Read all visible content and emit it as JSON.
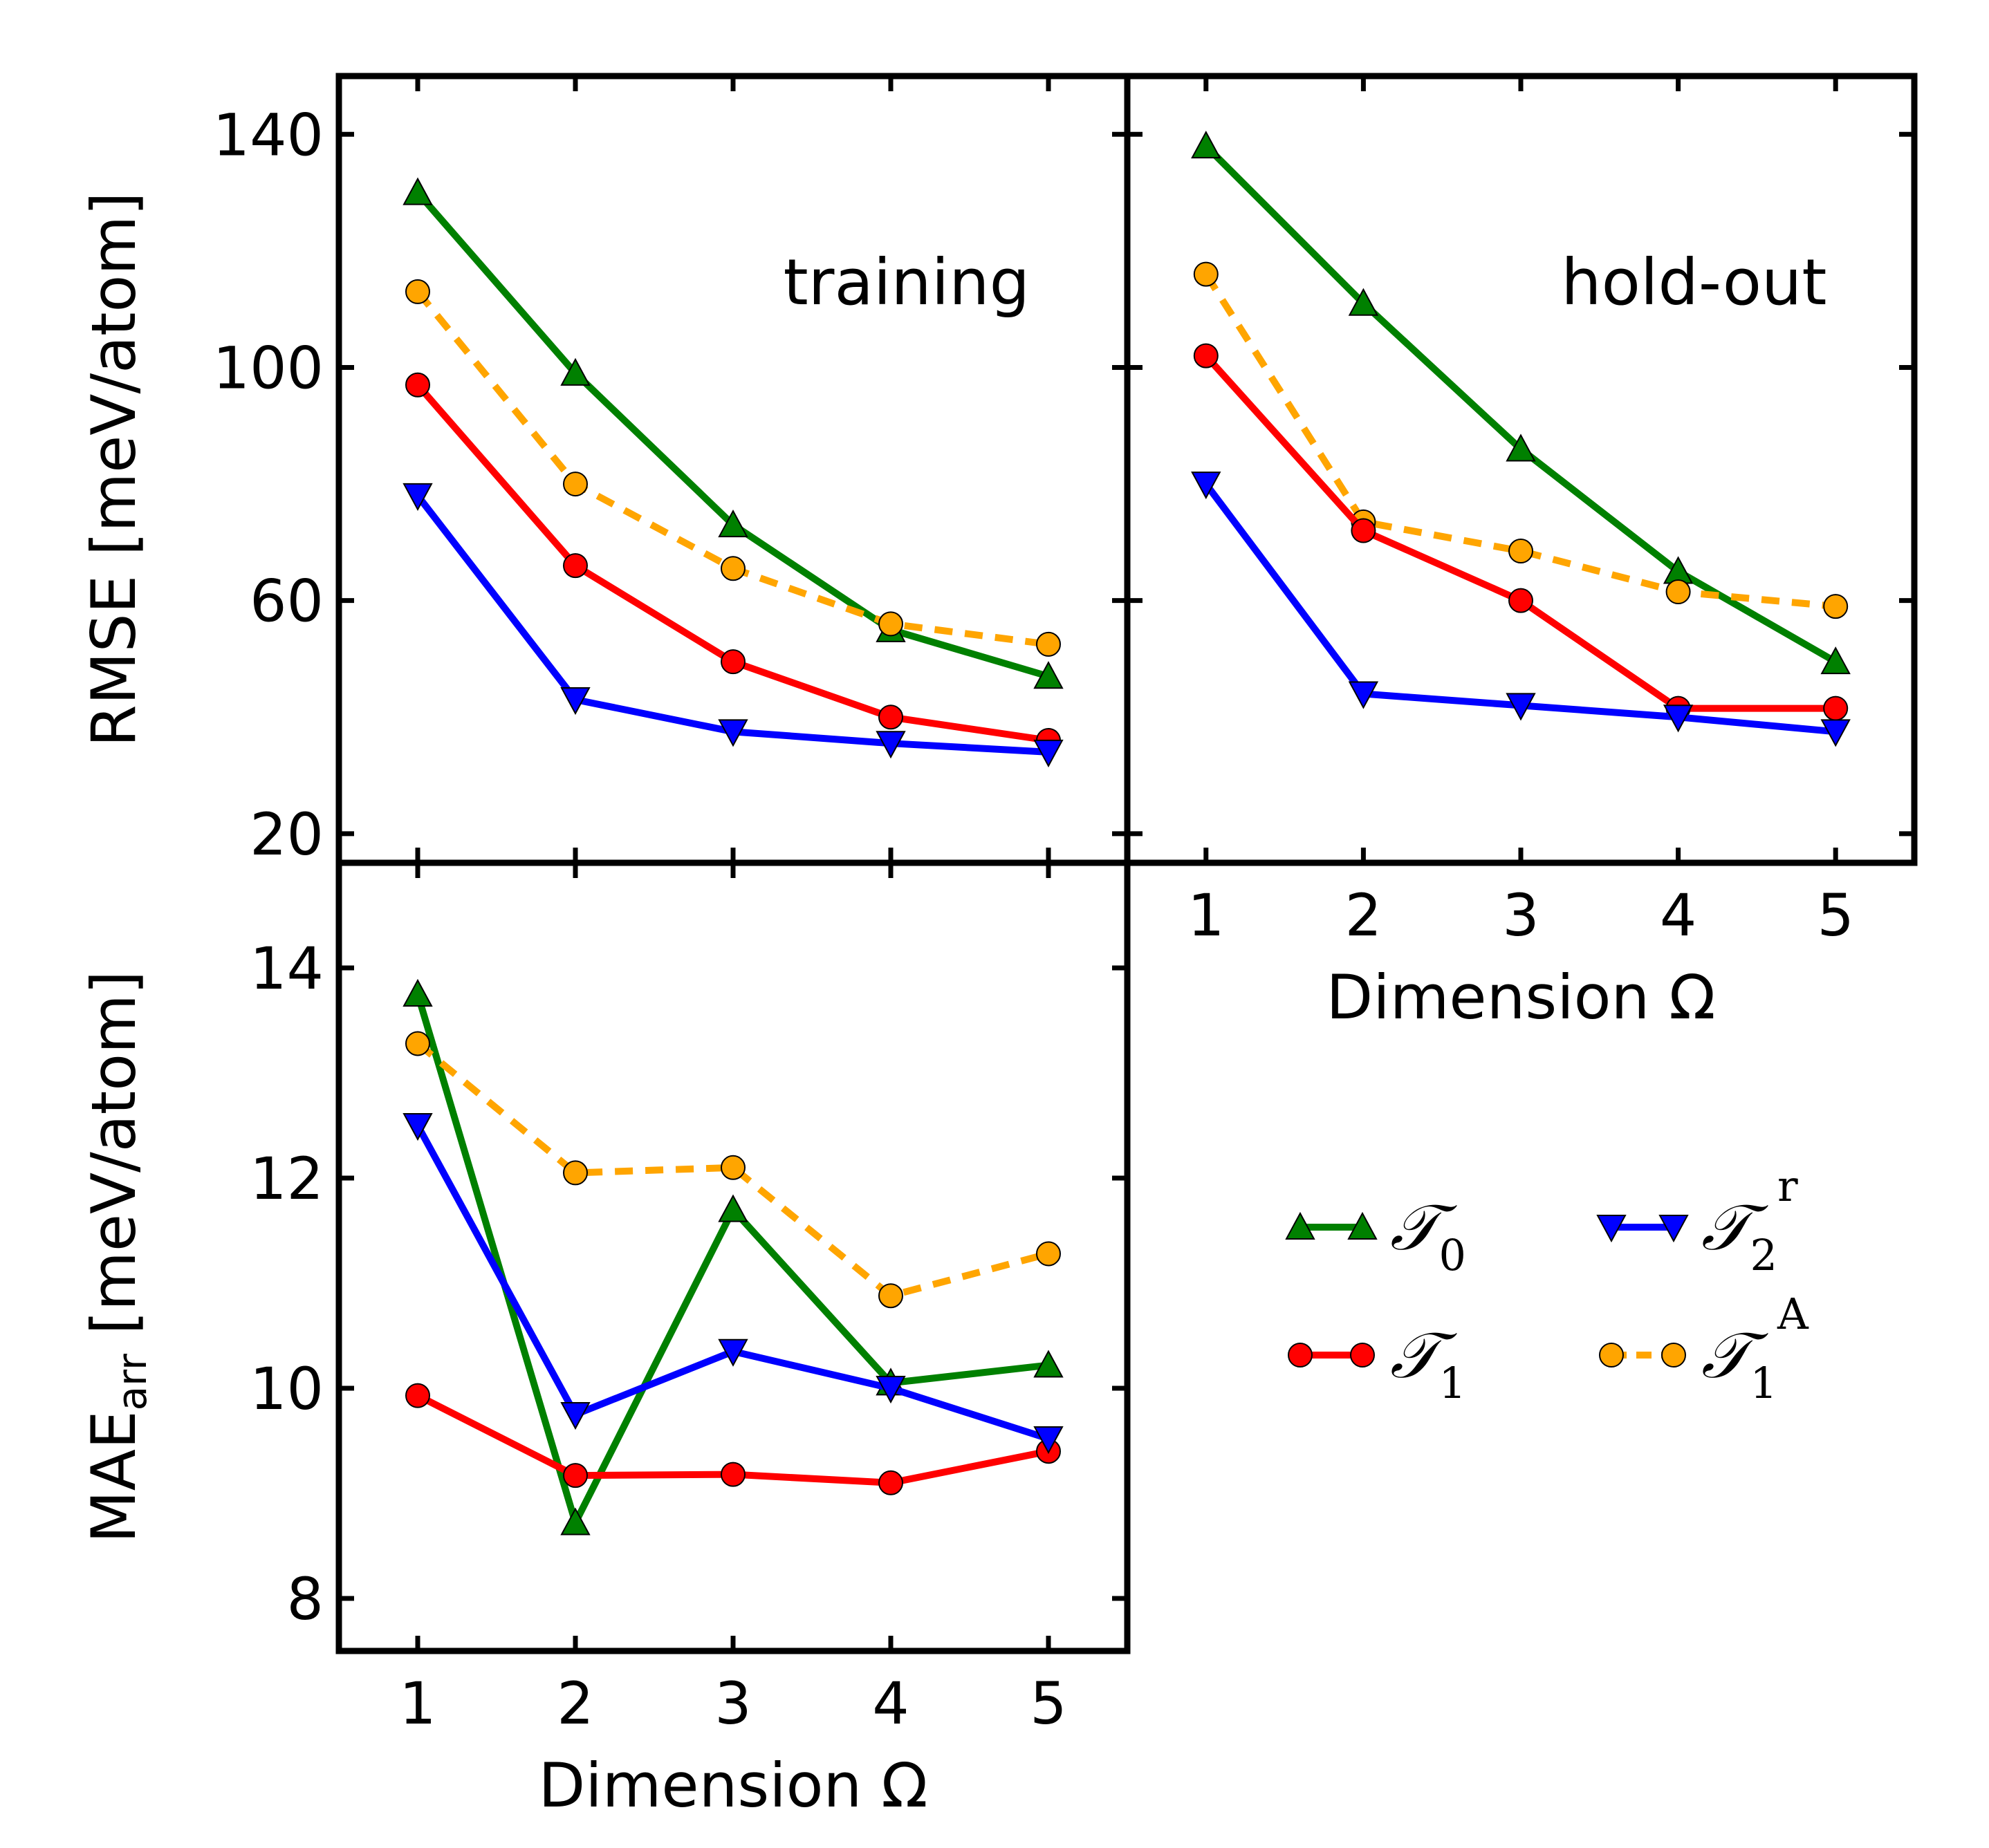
{
  "chart_data": [
    {
      "id": "training",
      "type": "line",
      "panel_label": "training",
      "ylabel": "RMSE [meV/atom]",
      "xlabel": "",
      "xlim": [
        0.5,
        5.5
      ],
      "ylim": [
        15,
        150
      ],
      "yticks": [
        20,
        60,
        100,
        140
      ],
      "ytick_labels": [
        "20",
        "60",
        "100",
        "140"
      ],
      "xticks": [
        1,
        2,
        3,
        4,
        5
      ],
      "x": [
        1,
        2,
        3,
        4,
        5
      ],
      "series": [
        {
          "key": "T0",
          "name": "T0",
          "marker": "triangle-up",
          "linestyle": "solid",
          "color": "#008000",
          "values": [
            130,
            99,
            73,
            55,
            47
          ]
        },
        {
          "key": "T1A",
          "name": "T1^A",
          "marker": "circle",
          "linestyle": "dashed",
          "color": "#ffa500",
          "values": [
            113,
            80,
            65.5,
            56,
            52.5
          ]
        },
        {
          "key": "T1",
          "name": "T1",
          "marker": "circle",
          "linestyle": "solid",
          "color": "#ff0000",
          "values": [
            97,
            66,
            49.5,
            40,
            36
          ]
        },
        {
          "key": "T2r",
          "name": "T2^r",
          "marker": "triangle-down",
          "linestyle": "solid",
          "color": "#0000ff",
          "values": [
            78,
            43,
            37.5,
            35.5,
            34
          ]
        }
      ]
    },
    {
      "id": "holdout",
      "type": "line",
      "panel_label": "hold-out",
      "ylabel": "",
      "xlabel": "Dimension Ω",
      "xlim": [
        0.5,
        5.5
      ],
      "ylim": [
        15,
        150
      ],
      "yticks": [
        20,
        60,
        100,
        140
      ],
      "xticks": [
        1,
        2,
        3,
        4,
        5
      ],
      "xtick_labels": [
        "1",
        "2",
        "3",
        "4",
        "5"
      ],
      "x": [
        1,
        2,
        3,
        4,
        5
      ],
      "series": [
        {
          "key": "T0",
          "name": "T0",
          "marker": "triangle-up",
          "linestyle": "solid",
          "color": "#008000",
          "values": [
            138,
            111,
            86,
            65,
            49.5
          ]
        },
        {
          "key": "T1A",
          "name": "T1^A",
          "marker": "circle",
          "linestyle": "dashed",
          "color": "#ffa500",
          "values": [
            116,
            73.5,
            68.5,
            61.5,
            59
          ]
        },
        {
          "key": "T1",
          "name": "T1",
          "marker": "circle",
          "linestyle": "solid",
          "color": "#ff0000",
          "values": [
            102,
            72,
            60,
            41.5,
            41.5
          ]
        },
        {
          "key": "T2r",
          "name": "T2^r",
          "marker": "triangle-down",
          "linestyle": "solid",
          "color": "#0000ff",
          "values": [
            80,
            44,
            42,
            40,
            37.5
          ]
        }
      ]
    },
    {
      "id": "mae",
      "type": "line",
      "panel_label": "",
      "ylabel_main": "MAE",
      "ylabel_sub": "arr",
      "ylabel_unit": " [meV/atom]",
      "xlabel": "Dimension Ω",
      "xlim": [
        0.5,
        5.5
      ],
      "ylim": [
        7.5,
        15
      ],
      "yticks": [
        8,
        10,
        12,
        14
      ],
      "ytick_labels": [
        "8",
        "10",
        "12",
        "14"
      ],
      "xticks": [
        1,
        2,
        3,
        4,
        5
      ],
      "xtick_labels": [
        "1",
        "2",
        "3",
        "4",
        "5"
      ],
      "x": [
        1,
        2,
        3,
        4,
        5
      ],
      "series": [
        {
          "key": "T0",
          "name": "T0",
          "marker": "triangle-up",
          "linestyle": "solid",
          "color": "#008000",
          "values": [
            13.75,
            8.72,
            11.7,
            10.05,
            10.22
          ]
        },
        {
          "key": "T1A",
          "name": "T1^A",
          "marker": "circle",
          "linestyle": "dashed",
          "color": "#ffa500",
          "values": [
            13.28,
            12.05,
            12.1,
            10.88,
            11.28
          ]
        },
        {
          "key": "T1",
          "name": "T1",
          "marker": "circle",
          "linestyle": "solid",
          "color": "#ff0000",
          "values": [
            9.93,
            9.17,
            9.18,
            9.1,
            9.4
          ]
        },
        {
          "key": "T2r",
          "name": "T2^r",
          "marker": "triangle-down",
          "linestyle": "solid",
          "color": "#0000ff",
          "values": [
            12.5,
            9.75,
            10.35,
            10.0,
            9.52
          ]
        }
      ]
    }
  ],
  "legend": {
    "placement": "bottom-right",
    "items": [
      {
        "key": "T0",
        "symbol": "𝒯",
        "sub": "0",
        "sup": "",
        "marker": "triangle-up",
        "linestyle": "solid",
        "color": "#008000"
      },
      {
        "key": "T2r",
        "symbol": "𝒯",
        "sub": "2",
        "sup": "r",
        "marker": "triangle-down",
        "linestyle": "solid",
        "color": "#0000ff"
      },
      {
        "key": "T1",
        "symbol": "𝒯",
        "sub": "1",
        "sup": "",
        "marker": "circle",
        "linestyle": "solid",
        "color": "#ff0000"
      },
      {
        "key": "T1A",
        "symbol": "𝒯",
        "sub": "1",
        "sup": "A",
        "marker": "circle",
        "linestyle": "dashed",
        "color": "#ffa500"
      }
    ]
  }
}
